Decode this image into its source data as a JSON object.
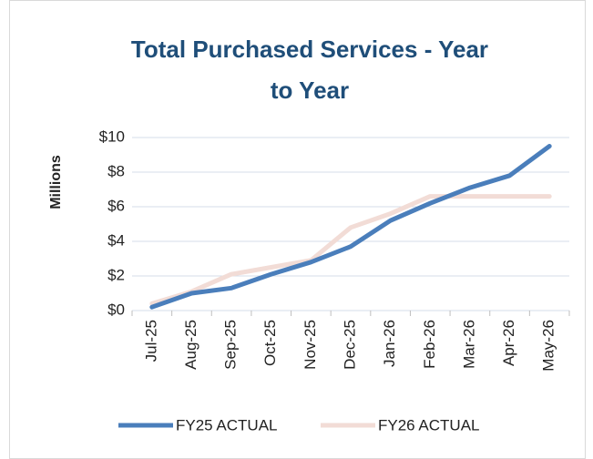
{
  "chart_data": {
    "type": "line",
    "title_lines": [
      "Total Purchased Services - Year",
      "to Year"
    ],
    "y_label": "Millions",
    "categories": [
      "Jul-25",
      "Aug-25",
      "Sep-25",
      "Oct-25",
      "Nov-25",
      "Dec-25",
      "Jan-26",
      "Feb-26",
      "Mar-26",
      "Apr-26",
      "May-26"
    ],
    "series": [
      {
        "name": "FY25 ACTUAL",
        "color": "#4a7ebb",
        "values": [
          0.2,
          1.0,
          1.3,
          2.1,
          2.8,
          3.7,
          5.2,
          6.2,
          7.1,
          7.8,
          9.5
        ]
      },
      {
        "name": "FY26 ACTUAL",
        "color": "#f2dcd6",
        "values": [
          0.4,
          1.1,
          2.1,
          2.5,
          2.9,
          4.8,
          5.6,
          6.6,
          6.6,
          6.6,
          6.6
        ]
      }
    ],
    "ylim": [
      0,
      10
    ],
    "yticks": [
      {
        "value": 0,
        "label": "$0"
      },
      {
        "value": 2,
        "label": "$2"
      },
      {
        "value": 4,
        "label": "$4"
      },
      {
        "value": 6,
        "label": "$6"
      },
      {
        "value": 8,
        "label": "$8"
      },
      {
        "value": 10,
        "label": "$10"
      }
    ],
    "grid": true,
    "legend": "bottom"
  }
}
